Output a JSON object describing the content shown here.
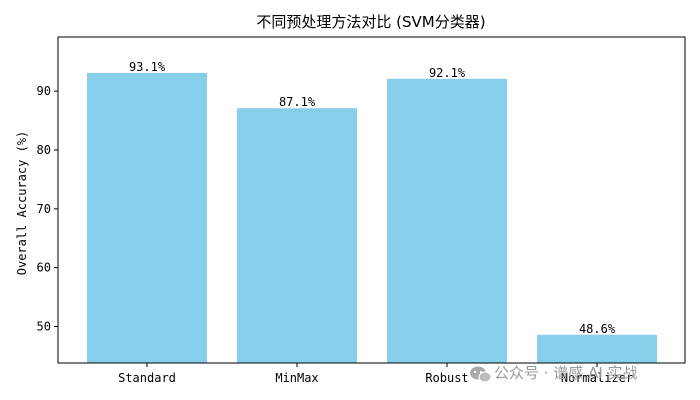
{
  "chart_data": {
    "type": "bar",
    "title": "不同预处理方法对比 (SVM分类器)",
    "xlabel": "",
    "ylabel": "Overall Accuracy (%)",
    "categories": [
      "Standard",
      "MinMax",
      "Robust",
      "Normalizer"
    ],
    "values": [
      93.1,
      87.1,
      92.1,
      48.6
    ],
    "value_labels": [
      "93.1%",
      "87.1%",
      "92.1%",
      "48.6%"
    ],
    "ylim": [
      43.8,
      99.2
    ],
    "yticks": [
      50,
      60,
      70,
      80,
      90
    ],
    "bar_color": "#87ceeb",
    "grid": false,
    "legend": "none"
  },
  "watermark": {
    "icon": "wechat-icon",
    "text": "公众号 · 谱感 AI 实战"
  }
}
